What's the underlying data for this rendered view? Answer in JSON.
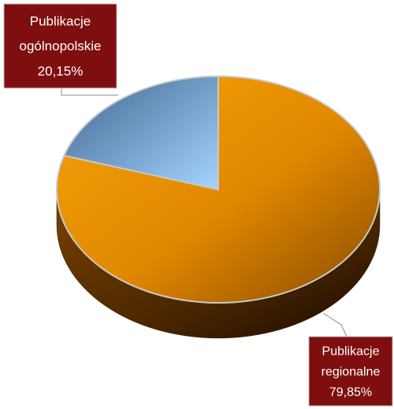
{
  "chart_data": {
    "type": "pie",
    "categories": [
      "Publikacje regionalne",
      "Publikacje ogólnopolskie"
    ],
    "values": [
      79.85,
      20.15
    ],
    "value_labels": [
      "79,85%",
      "20,15%"
    ],
    "colors": [
      "#f39200",
      "#5a82b0"
    ]
  }
}
